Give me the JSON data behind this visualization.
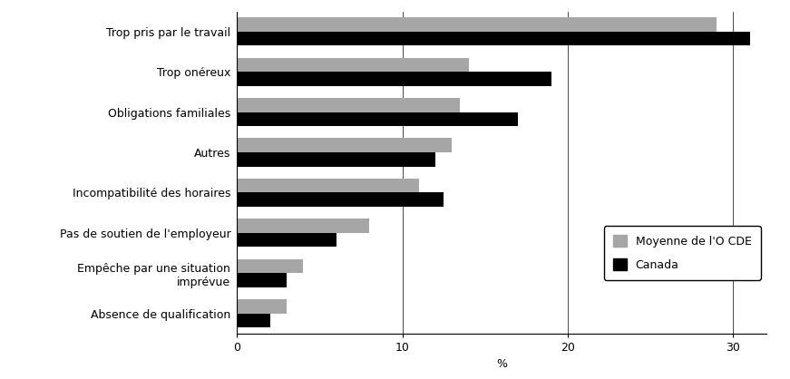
{
  "categories": [
    "Trop pris par le travail",
    "Trop onéreux",
    "Obligations familiales",
    "Autres",
    "Incompatibilité des horaires",
    "Pas de soutien de l'employeur",
    "Empêche par une situation\nimprévue",
    "Absence de qualification"
  ],
  "ocde_values": [
    29,
    14,
    13.5,
    13,
    11,
    8,
    4,
    3
  ],
  "canada_values": [
    31,
    19,
    17,
    12,
    12.5,
    6,
    3,
    2
  ],
  "ocde_color": "#a6a6a6",
  "canada_color": "#000000",
  "legend_ocde": "Moyenne de l'O CDE",
  "legend_canada": "Canada",
  "xlim": [
    0,
    32
  ],
  "xticks": [
    0,
    10,
    20,
    30
  ],
  "xlabel": "%",
  "bar_height": 0.35,
  "figsize": [
    8.71,
    4.18
  ],
  "dpi": 100
}
